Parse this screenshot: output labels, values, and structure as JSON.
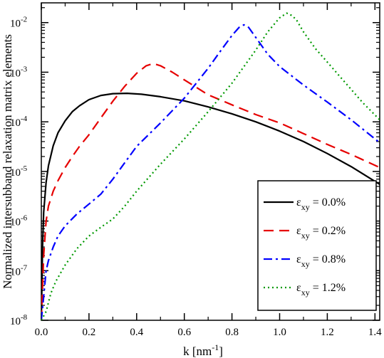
{
  "chart_data": {
    "type": "line",
    "title": "",
    "xlabel": "k [nm",
    "xlabel_sup": "-1",
    "xlabel_end": "]",
    "ylabel": "Normalized intersubband relaxation matrix elements",
    "xlim": [
      0.0,
      1.42
    ],
    "ylim": [
      1e-08,
      0.025
    ],
    "yscale": "log",
    "grid": false,
    "legend_position": "bottom-right",
    "x_ticks": [
      0.0,
      0.2,
      0.4,
      0.6,
      0.8,
      1.0,
      1.2,
      1.4
    ],
    "x_tick_labels": [
      "0.0",
      "0.2",
      "0.4",
      "0.6",
      "0.8",
      "1.0",
      "1.2",
      "1.4"
    ],
    "y_ticks": [
      {
        "base": "10",
        "exp": "-8"
      },
      {
        "base": "10",
        "exp": "-7"
      },
      {
        "base": "10",
        "exp": "-6"
      },
      {
        "base": "10",
        "exp": "-5"
      },
      {
        "base": "10",
        "exp": "-4"
      },
      {
        "base": "10",
        "exp": "-3"
      },
      {
        "base": "10",
        "exp": "-2"
      }
    ],
    "series": [
      {
        "label_main": "ε",
        "label_sub": "xy",
        "label_value": " = 0.0%",
        "color": "#000000",
        "dash": "",
        "x": [
          0.0,
          0.005,
          0.01,
          0.02,
          0.03,
          0.05,
          0.07,
          0.1,
          0.13,
          0.16,
          0.2,
          0.25,
          0.3,
          0.36,
          0.42,
          0.5,
          0.6,
          0.7,
          0.8,
          0.9,
          1.0,
          1.1,
          1.2,
          1.3,
          1.42
        ],
        "y": [
          1e-08,
          3e-07,
          1.5e-06,
          6e-06,
          1.3e-05,
          3.3e-05,
          6e-05,
          0.000105,
          0.00016,
          0.00021,
          0.00028,
          0.00034,
          0.00037,
          0.000375,
          0.00036,
          0.00032,
          0.000265,
          0.0002,
          0.000145,
          0.0001,
          6.5e-05,
          4e-05,
          2.3e-05,
          1.25e-05,
          5.5e-06
        ]
      },
      {
        "label_main": "ε",
        "label_sub": "xy",
        "label_value": " = 0.2%",
        "color": "#e60000",
        "dash": "14,8",
        "x": [
          0.0,
          0.01,
          0.02,
          0.03,
          0.05,
          0.07,
          0.1,
          0.13,
          0.16,
          0.2,
          0.25,
          0.3,
          0.35,
          0.4,
          0.44,
          0.47,
          0.5,
          0.55,
          0.6,
          0.7,
          0.8,
          0.9,
          1.0,
          1.1,
          1.2,
          1.3,
          1.42
        ],
        "y": [
          1e-08,
          2e-07,
          1e-06,
          2e-06,
          4e-06,
          6.5e-06,
          1.2e-05,
          2e-05,
          3.2e-05,
          5.5e-05,
          0.00012,
          0.00026,
          0.00052,
          0.00095,
          0.00135,
          0.0015,
          0.00135,
          0.001,
          0.0007,
          0.00035,
          0.00022,
          0.00014,
          9.5e-05,
          5.8e-05,
          3.5e-05,
          2.2e-05,
          1.2e-05
        ]
      },
      {
        "label_main": "ε",
        "label_sub": "xy",
        "label_value": " = 0.8%",
        "color": "#0000ff",
        "dash": "12,5,3,5",
        "x": [
          0.0,
          0.01,
          0.02,
          0.03,
          0.05,
          0.07,
          0.1,
          0.15,
          0.2,
          0.25,
          0.3,
          0.35,
          0.4,
          0.5,
          0.6,
          0.7,
          0.75,
          0.8,
          0.83,
          0.85,
          0.87,
          0.9,
          0.95,
          1.0,
          1.1,
          1.2,
          1.3,
          1.42
        ],
        "y": [
          1e-08,
          3e-08,
          1e-07,
          1.6e-07,
          3e-07,
          5e-07,
          8e-07,
          1.4e-06,
          2.2e-06,
          3.5e-06,
          7e-06,
          1.5e-05,
          3.2e-05,
          9.5e-05,
          0.0003,
          0.0012,
          0.0026,
          0.0055,
          0.008,
          0.009,
          0.008,
          0.005,
          0.0023,
          0.0013,
          0.00055,
          0.00025,
          0.00011,
          3.8e-05
        ]
      },
      {
        "label_main": "ε",
        "label_sub": "xy",
        "label_value": " = 1.2%",
        "color": "#009900",
        "dash": "2,4",
        "x": [
          0.0,
          0.02,
          0.04,
          0.06,
          0.1,
          0.15,
          0.2,
          0.25,
          0.3,
          0.35,
          0.4,
          0.5,
          0.6,
          0.7,
          0.8,
          0.9,
          0.95,
          1.0,
          1.03,
          1.05,
          1.07,
          1.1,
          1.15,
          1.2,
          1.25,
          1.3,
          1.35,
          1.42
        ],
        "y": [
          1e-08,
          1.5e-08,
          3.5e-08,
          6e-08,
          1.3e-07,
          2.8e-07,
          5e-07,
          7.5e-07,
          1.1e-06,
          2e-06,
          4e-06,
          1.4e-05,
          4.5e-05,
          0.00016,
          0.0006,
          0.0028,
          0.0065,
          0.0125,
          0.0155,
          0.014,
          0.0115,
          0.0065,
          0.003,
          0.0016,
          0.00085,
          0.00045,
          0.00024,
          0.00011
        ]
      }
    ]
  }
}
